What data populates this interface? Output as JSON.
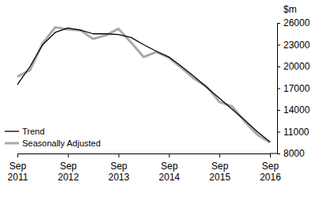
{
  "chart_data": {
    "type": "line",
    "ylabel": "$m",
    "categories": [
      "Sep 2011",
      null,
      null,
      null,
      "Sep 2012",
      null,
      null,
      null,
      "Sep 2013",
      null,
      null,
      null,
      "Sep 2014",
      null,
      null,
      null,
      "Sep 2015",
      null,
      null,
      null,
      "Sep 2016"
    ],
    "series": [
      {
        "name": "Trend",
        "color": "#000000",
        "values": [
          17500,
          20000,
          23000,
          24700,
          25300,
          25000,
          24500,
          24500,
          24400,
          24000,
          23000,
          22100,
          21300,
          20000,
          18600,
          17100,
          15600,
          14100,
          12600,
          11000,
          9600
        ]
      },
      {
        "name": "Seasonally Adjusted",
        "color": "#aaaaaa",
        "values": [
          18600,
          19500,
          23200,
          25400,
          25100,
          25000,
          23800,
          24300,
          25200,
          23300,
          21300,
          22000,
          21200,
          19800,
          18300,
          17200,
          15100,
          14500,
          12400,
          10600,
          9500
        ]
      }
    ],
    "ylim": [
      8000,
      26000
    ],
    "yticks": [
      8000,
      11000,
      14000,
      17000,
      20000,
      23000,
      26000
    ],
    "legend": "bottom-left",
    "grid": false
  }
}
